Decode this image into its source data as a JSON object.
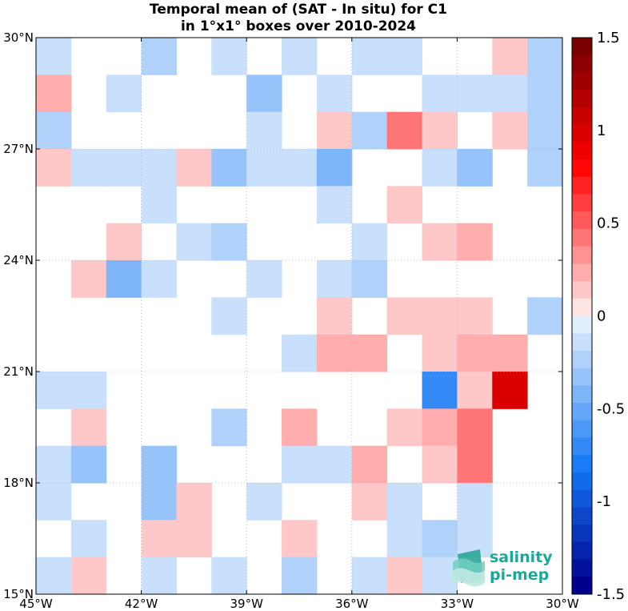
{
  "chart_data": {
    "type": "heatmap",
    "title": [
      "Temporal mean of (SAT - In situ) for C1",
      "in 1°x1° boxes over 2010-2024"
    ],
    "x_ticks": [
      "45°W",
      "42°W",
      "39°W",
      "36°W",
      "33°W",
      "30°W"
    ],
    "y_ticks": [
      "15°N",
      "18°N",
      "21°N",
      "24°N",
      "27°N",
      "30°N"
    ],
    "x_range_deg_west": [
      45,
      30
    ],
    "y_range_deg_north": [
      15,
      30
    ],
    "grid": true,
    "cell_size_deg": 1,
    "colorbar": {
      "min": -1.5,
      "max": 1.5,
      "levels": 32,
      "ticks": [
        "1.5",
        "1",
        "0.5",
        "0",
        "-0.5",
        "-1",
        "-1.5"
      ],
      "tick_values": [
        1.5,
        1,
        0.5,
        0,
        -0.5,
        -1,
        -1.5
      ]
    },
    "rows_top_to_bottom_lat_from_30N": [
      [
        -0.1,
        0,
        0,
        -0.2,
        0,
        -0.1,
        0,
        -0.1,
        0,
        -0.1,
        -0.1,
        0,
        0,
        0.15,
        -0.2
      ],
      [
        0.25,
        0,
        -0.1,
        0,
        0,
        0,
        -0.3,
        0,
        -0.1,
        0,
        0,
        -0.1,
        -0.1,
        -0.1,
        -0.2
      ],
      [
        -0.2,
        0,
        0,
        0,
        0,
        0,
        -0.1,
        0,
        0.15,
        -0.2,
        0.4,
        0.15,
        0,
        0.15,
        -0.2
      ],
      [
        0.15,
        -0.1,
        -0.1,
        -0.1,
        0.15,
        -0.3,
        -0.1,
        -0.1,
        -0.4,
        0,
        0,
        -0.1,
        -0.3,
        0,
        -0.2
      ],
      [
        0,
        0,
        0,
        -0.1,
        0,
        0,
        0,
        0,
        -0.1,
        0,
        0.15,
        0,
        0,
        0,
        0
      ],
      [
        0,
        0,
        0.15,
        0,
        -0.1,
        -0.2,
        0,
        0,
        0,
        -0.1,
        0,
        0.15,
        0.25,
        0,
        0
      ],
      [
        0,
        0.15,
        -0.4,
        -0.1,
        0,
        0,
        -0.1,
        0,
        -0.1,
        -0.2,
        0,
        0,
        0,
        0,
        0
      ],
      [
        0,
        0,
        0,
        0,
        0,
        -0.1,
        0,
        0,
        0.15,
        0,
        0.15,
        0.15,
        0.15,
        0,
        -0.2
      ],
      [
        0,
        0,
        0,
        0,
        0,
        0,
        0,
        -0.1,
        0.25,
        0.25,
        0,
        0.15,
        0.25,
        0.25,
        0
      ],
      [
        -0.1,
        -0.1,
        0,
        0,
        0,
        0,
        0,
        0,
        0,
        0,
        0,
        -0.7,
        0.15,
        1.0,
        0
      ],
      [
        0,
        0.15,
        0,
        0,
        0,
        -0.2,
        0,
        0.25,
        0,
        0,
        0.15,
        0.25,
        0.4,
        0,
        0
      ],
      [
        -0.1,
        -0.35,
        0,
        -0.3,
        0,
        0,
        0,
        -0.1,
        -0.1,
        0.25,
        0,
        0.15,
        0.4,
        0,
        0
      ],
      [
        -0.1,
        0,
        0,
        -0.3,
        0.15,
        0,
        -0.1,
        0,
        0,
        0.15,
        -0.1,
        0,
        -0.1,
        0,
        0
      ],
      [
        0,
        -0.1,
        0,
        0.15,
        0.15,
        0,
        0,
        0.15,
        0,
        0,
        -0.1,
        -0.2,
        -0.1,
        0,
        0
      ],
      [
        -0.1,
        0.15,
        0,
        -0.1,
        0,
        -0.1,
        0,
        -0.2,
        0,
        -0.1,
        0.15,
        -0.1,
        0,
        0,
        0
      ]
    ]
  },
  "logo": {
    "line1": "salinity",
    "line2": "pi-mep",
    "color": "#1aa89a"
  }
}
